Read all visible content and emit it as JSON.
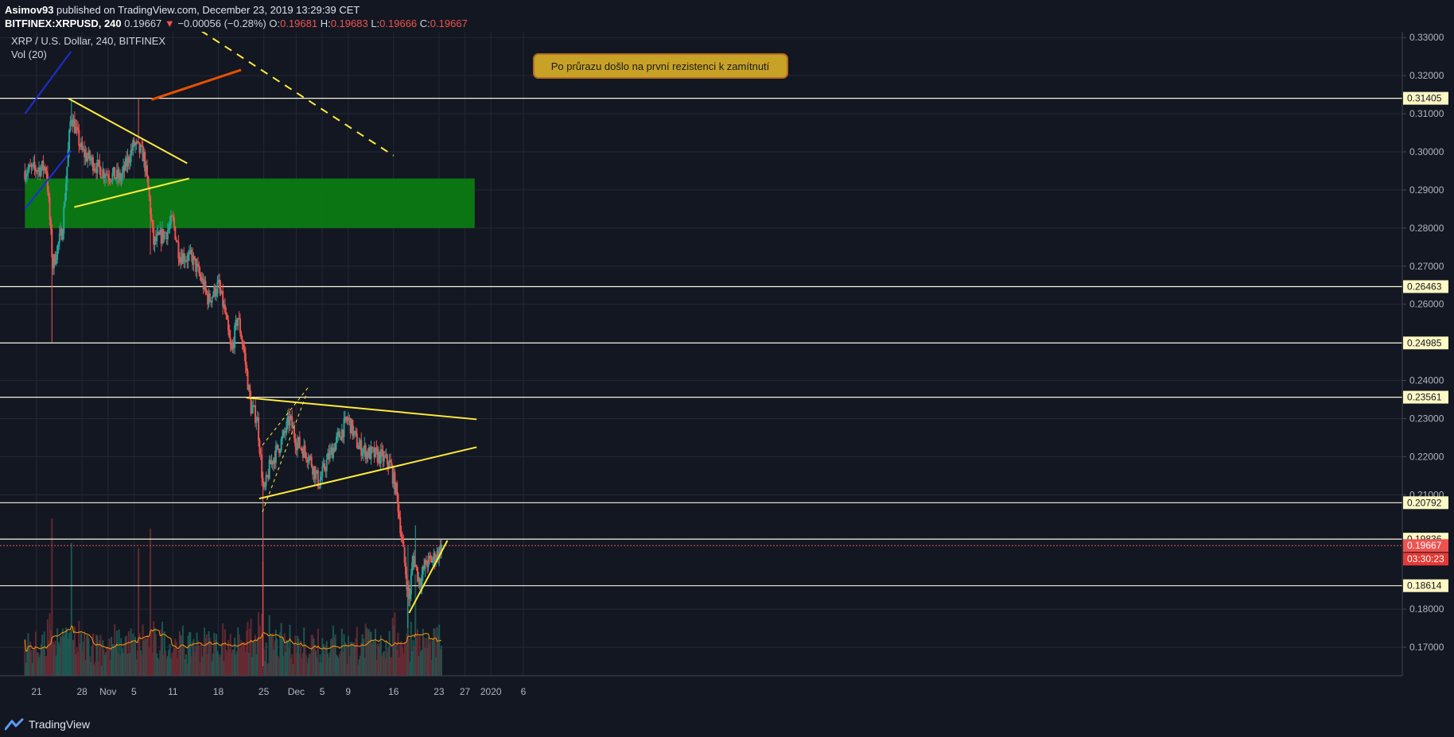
{
  "header": {
    "author": "Asimov93",
    "published": "published on TradingView.com, December 23, 2019 13:29:39 CET",
    "symbol": "BITFINEX:XRPUSD, 240",
    "last": "0.19667",
    "change_arrow": "▼",
    "change": "−0.00056 (−0.28%)",
    "o_label": "O:",
    "o": "0.19681",
    "h_label": "H:",
    "h": "0.19683",
    "l_label": "L:",
    "l": "0.19666",
    "c_label": "C:",
    "c": "0.19667"
  },
  "legend": {
    "title": "XRP / U.S. Dollar, 240, BITFINEX",
    "volume": "Vol (20)"
  },
  "annotation": "Po průrazu došlo na první rezistenci k zamítnutí",
  "footer": {
    "brand": "TradingView",
    "logo_icon": "tradingview-logo-icon"
  },
  "colors": {
    "background": "#131722",
    "up": "#26a69a",
    "down": "#ef5350",
    "trendline": "#ffeb3b",
    "level": "#f5f5dc",
    "zone": "#0b7a13",
    "channel": "#1e2dd8"
  },
  "chart_data": {
    "type": "candlestick",
    "ylim": [
      0.1625,
      0.3315
    ],
    "scale": "linear",
    "grid": true,
    "price_ticks": [
      "0.33000",
      "0.32000",
      "0.31000",
      "0.30000",
      "0.29000",
      "0.28000",
      "0.27000",
      "0.26000",
      "0.24000",
      "0.23000",
      "0.22000",
      "0.21000",
      "0.18000",
      "0.17000"
    ],
    "date_ticks": [
      {
        "label": "21",
        "x": 0.0
      },
      {
        "label": "28",
        "x": 7.0
      },
      {
        "label": "Nov",
        "x": 11.0
      },
      {
        "label": "5",
        "x": 15.0
      },
      {
        "label": "11",
        "x": 21.0
      },
      {
        "label": "18",
        "x": 28.0
      },
      {
        "label": "25",
        "x": 35.0
      },
      {
        "label": "Dec",
        "x": 40.0
      },
      {
        "label": "5",
        "x": 44.0
      },
      {
        "label": "9",
        "x": 48.0
      },
      {
        "label": "16",
        "x": 55.0
      },
      {
        "label": "23",
        "x": 62.0
      },
      {
        "label": "27",
        "x": 66.0
      },
      {
        "label": "2020",
        "x": 70.0
      },
      {
        "label": "6",
        "x": 75.0
      }
    ],
    "level_lines": [
      {
        "label": "0.31405",
        "value": 0.31405
      },
      {
        "label": "0.26463",
        "value": 0.26463
      },
      {
        "label": "0.24985",
        "value": 0.24985
      },
      {
        "label": "0.23561",
        "value": 0.23561
      },
      {
        "label": "0.20792",
        "value": 0.20792
      },
      {
        "label": "0.19836",
        "value": 0.19836
      },
      {
        "label": "0.18614",
        "value": 0.18614
      }
    ],
    "current_price": {
      "label": "0.19667",
      "value": 0.19667
    },
    "countdown": "03:30:23",
    "zone": {
      "x1": -1.8,
      "x2": 67.5,
      "y1": 0.28,
      "y2": 0.293
    },
    "trendlines": [
      {
        "x1": -1.8,
        "y1": 0.285,
        "x2": 5.3,
        "y2": 0.3003,
        "style": "channel"
      },
      {
        "x1": -1.8,
        "y1": 0.31,
        "x2": 5.3,
        "y2": 0.3263,
        "style": "channel"
      },
      {
        "x1": 4.9,
        "y1": 0.314,
        "x2": 23.2,
        "y2": 0.297,
        "style": "solid"
      },
      {
        "x1": 5.8,
        "y1": 0.2855,
        "x2": 23.5,
        "y2": 0.293,
        "style": "solid"
      },
      {
        "x1": 25.3,
        "y1": 0.3318,
        "x2": 55.0,
        "y2": 0.299,
        "style": "dashed"
      },
      {
        "x1": 32.3,
        "y1": 0.2355,
        "x2": 67.8,
        "y2": 0.2298,
        "style": "solid"
      },
      {
        "x1": 34.3,
        "y1": 0.209,
        "x2": 67.8,
        "y2": 0.2225,
        "style": "solid"
      },
      {
        "x1": 34.8,
        "y1": 0.223,
        "x2": 42.0,
        "y2": 0.2385,
        "style": "thin-dashed"
      },
      {
        "x1": 34.8,
        "y1": 0.2055,
        "x2": 41.6,
        "y2": 0.2365,
        "style": "thin-dashed"
      },
      {
        "x1": 57.4,
        "y1": 0.179,
        "x2": 63.3,
        "y2": 0.198,
        "style": "solid"
      },
      {
        "x1": 17.7,
        "y1": 0.3137,
        "x2": 31.5,
        "y2": 0.3215,
        "style": "callout"
      }
    ],
    "anchors": [
      {
        "x": -1.8,
        "p": 0.295
      },
      {
        "x": 1.5,
        "p": 0.296
      },
      {
        "x": 2.5,
        "p": 0.27
      },
      {
        "x": 4.0,
        "p": 0.28
      },
      {
        "x": 5.3,
        "p": 0.31
      },
      {
        "x": 7.0,
        "p": 0.3
      },
      {
        "x": 10.0,
        "p": 0.295
      },
      {
        "x": 13.0,
        "p": 0.293
      },
      {
        "x": 15.0,
        "p": 0.302
      },
      {
        "x": 16.5,
        "p": 0.299
      },
      {
        "x": 17.3,
        "p": 0.289
      },
      {
        "x": 18.0,
        "p": 0.276
      },
      {
        "x": 20.0,
        "p": 0.279
      },
      {
        "x": 21.0,
        "p": 0.282
      },
      {
        "x": 22.0,
        "p": 0.273
      },
      {
        "x": 24.0,
        "p": 0.272
      },
      {
        "x": 25.5,
        "p": 0.266
      },
      {
        "x": 26.5,
        "p": 0.261
      },
      {
        "x": 28.0,
        "p": 0.265
      },
      {
        "x": 29.0,
        "p": 0.258
      },
      {
        "x": 30.0,
        "p": 0.247
      },
      {
        "x": 31.0,
        "p": 0.257
      },
      {
        "x": 32.0,
        "p": 0.247
      },
      {
        "x": 33.0,
        "p": 0.233
      },
      {
        "x": 34.0,
        "p": 0.23
      },
      {
        "x": 35.0,
        "p": 0.21
      },
      {
        "x": 36.0,
        "p": 0.218
      },
      {
        "x": 38.0,
        "p": 0.225
      },
      {
        "x": 39.0,
        "p": 0.23
      },
      {
        "x": 40.0,
        "p": 0.224
      },
      {
        "x": 42.0,
        "p": 0.22
      },
      {
        "x": 43.5,
        "p": 0.213
      },
      {
        "x": 45.0,
        "p": 0.22
      },
      {
        "x": 48.0,
        "p": 0.23
      },
      {
        "x": 49.5,
        "p": 0.223
      },
      {
        "x": 51.0,
        "p": 0.221
      },
      {
        "x": 53.0,
        "p": 0.22
      },
      {
        "x": 54.5,
        "p": 0.218
      },
      {
        "x": 55.5,
        "p": 0.21
      },
      {
        "x": 56.5,
        "p": 0.195
      },
      {
        "x": 57.4,
        "p": 0.182
      },
      {
        "x": 58.0,
        "p": 0.194
      },
      {
        "x": 59.0,
        "p": 0.187
      },
      {
        "x": 60.0,
        "p": 0.192
      },
      {
        "x": 61.0,
        "p": 0.193
      },
      {
        "x": 62.0,
        "p": 0.195
      },
      {
        "x": 62.4,
        "p": 0.1967
      }
    ],
    "spikes": [
      {
        "x": 2.3,
        "p": 0.25
      },
      {
        "x": 5.4,
        "p": 0.314
      },
      {
        "x": 15.7,
        "p": 0.314
      },
      {
        "x": 17.5,
        "p": 0.273
      },
      {
        "x": 34.8,
        "p": 0.165
      },
      {
        "x": 57.2,
        "p": 0.175
      },
      {
        "x": 58.3,
        "p": 0.202
      }
    ],
    "volume_max_ratio": 0.28
  }
}
